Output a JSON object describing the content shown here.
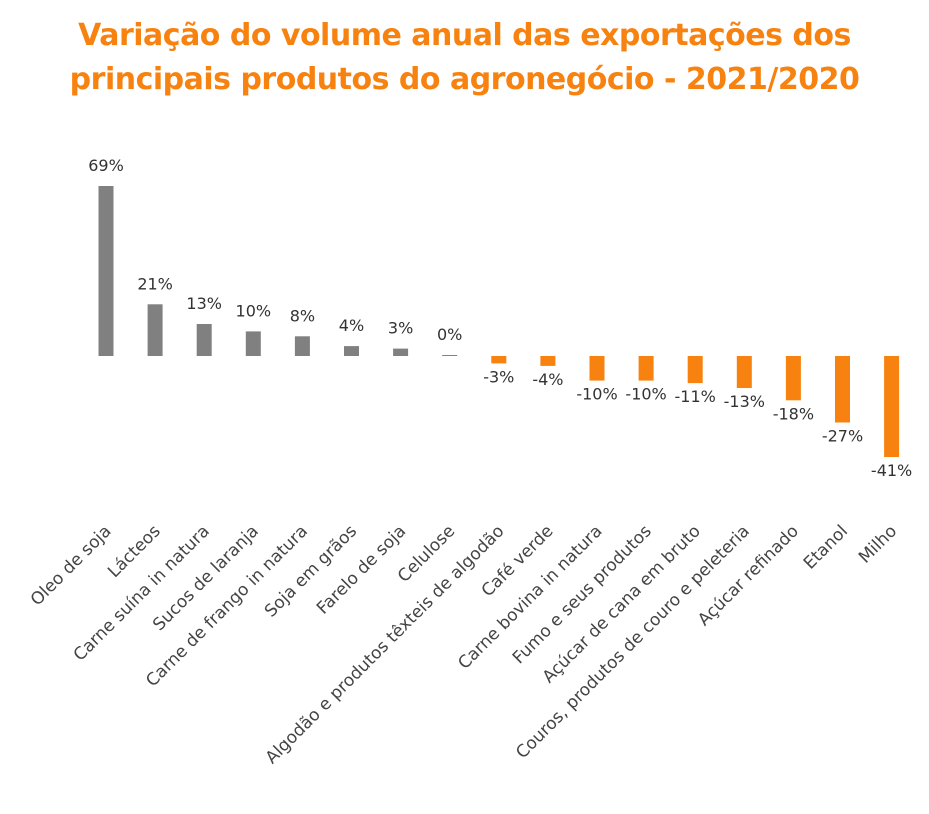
{
  "title_lines": [
    "Variação do volume anual das exportações dos",
    "principais produtos do agronegócio - 2021/2020"
  ],
  "colors": {
    "title": "#f7820f",
    "positive": "#808080",
    "negative": "#f7820f"
  },
  "chart_data": {
    "type": "bar",
    "title": "Variação do volume anual das exportações dos principais produtos do agronegócio - 2021/2020",
    "categories": [
      "Oleo de soja",
      "Lácteos",
      "Carne suína in natura",
      "Sucos de laranja",
      "Carne de frango in natura",
      "Soja em grãos",
      "Farelo de soja",
      "Celulose",
      "Algodão e produtos têxteis de algodão",
      "Café verde",
      "Carne bovina in natura",
      "Fumo e seus produtos",
      "Açúcar de cana em bruto",
      "Couros, produtos de couro e peleteria",
      "Açúcar refinado",
      "Etanol",
      "Milho"
    ],
    "values": [
      69,
      21,
      13,
      10,
      8,
      4,
      3,
      0,
      -3,
      -4,
      -10,
      -10,
      -11,
      -13,
      -18,
      -27,
      -41
    ],
    "value_labels": [
      "69%",
      "21%",
      "13%",
      "10%",
      "8%",
      "4%",
      "3%",
      "0%",
      "-3%",
      "-4%",
      "-10%",
      "-10%",
      "-11%",
      "-13%",
      "-18%",
      "-27%",
      "-41%"
    ],
    "xlabel": "",
    "ylabel": "",
    "grid": false,
    "legend": "none"
  }
}
